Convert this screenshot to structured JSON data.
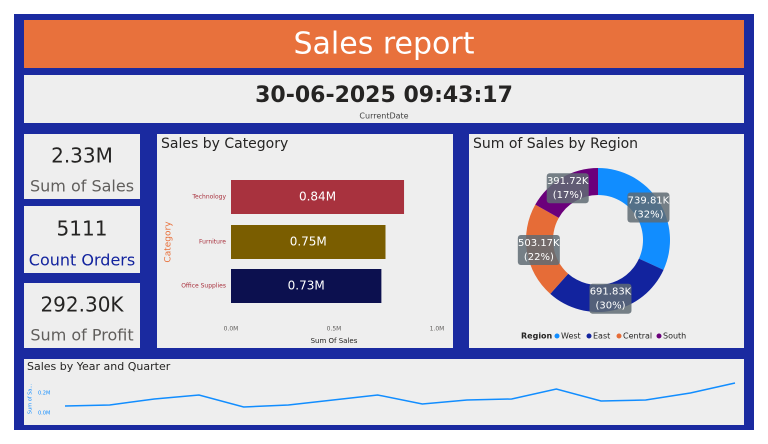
{
  "header": {
    "title": "Sales report"
  },
  "date": {
    "value": "30-06-2025 09:43:17",
    "label": "CurrentDate"
  },
  "cards": [
    {
      "value": "2.33M",
      "label": "Sum of Sales"
    },
    {
      "value": "5111",
      "label": "Count Orders"
    },
    {
      "value": "292.30K",
      "label": "Sum of Profit"
    }
  ],
  "chart_data": [
    {
      "type": "bar",
      "title": "Sales by Category",
      "x_label": "Sum Of Sales",
      "y_label": "Category",
      "categories": [
        "Technology",
        "Furniture",
        "Office Supplies"
      ],
      "values": [
        0.84,
        0.75,
        0.73
      ],
      "value_labels": [
        "0.84M",
        "0.75M",
        "0.73M"
      ],
      "colors": [
        "#a8323e",
        "#7a5d00",
        "#0c104f"
      ],
      "xlim": [
        0,
        1.0
      ],
      "xticks": [
        {
          "value": 0,
          "label": "0.0M"
        },
        {
          "value": 0.5,
          "label": "0.5M"
        },
        {
          "value": 1.0,
          "label": "1.0M"
        }
      ]
    },
    {
      "type": "donut",
      "title": "Sum of Sales by Region",
      "legend_title": "Region",
      "categories": [
        "West",
        "East",
        "Central",
        "South"
      ],
      "values": [
        739.81,
        691.83,
        503.17,
        391.72
      ],
      "value_labels": [
        "739.81K",
        "691.83K",
        "503.17K",
        "391.72K"
      ],
      "percent_labels": [
        "(32%)",
        "(30%)",
        "(22%)",
        "(17%)"
      ],
      "colors": [
        "#118dff",
        "#12239e",
        "#e66c37",
        "#6b007b"
      ]
    },
    {
      "type": "line",
      "title": "Sales by Year and Quarter",
      "y_label": "Sum of Sa...",
      "values": [
        0.07,
        0.08,
        0.14,
        0.18,
        0.06,
        0.08,
        0.13,
        0.18,
        0.09,
        0.13,
        0.14,
        0.24,
        0.12,
        0.13,
        0.2,
        0.3
      ],
      "color": "#118dff",
      "ylim": [
        0,
        0.35
      ],
      "yticks": [
        {
          "value": 0,
          "label": "0.0M"
        },
        {
          "value": 0.2,
          "label": "0.2M"
        }
      ]
    }
  ]
}
